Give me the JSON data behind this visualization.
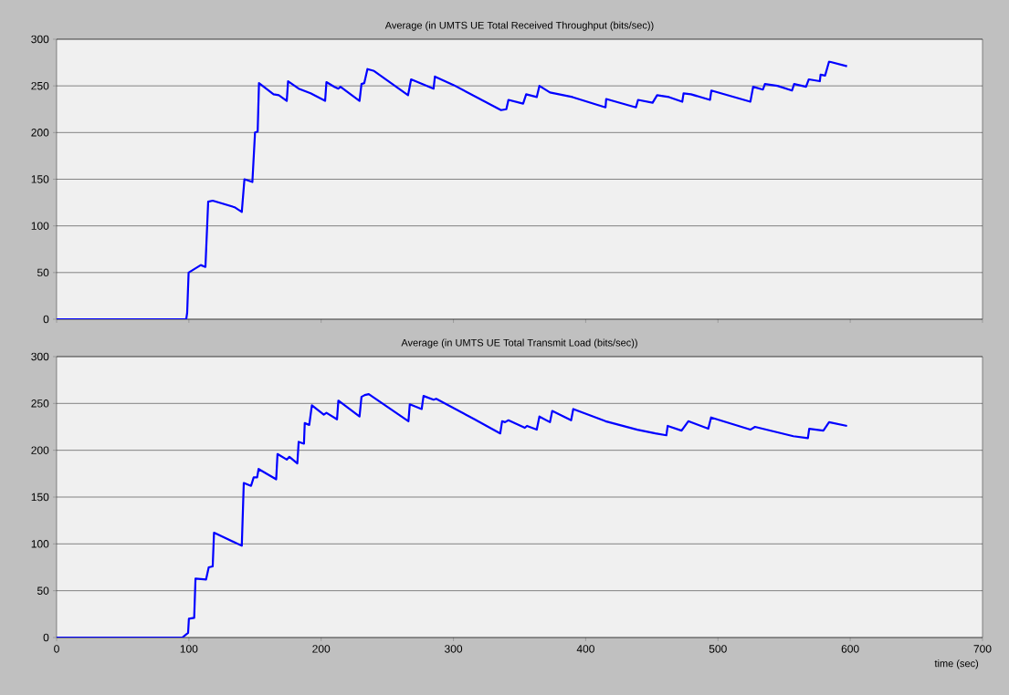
{
  "chart_data": [
    {
      "type": "line",
      "title": "Average (in UMTS UE Total Received Throughput (bits/sec))",
      "xlim": [
        0,
        700
      ],
      "xticks": [
        0,
        100,
        200,
        300,
        400,
        500,
        600,
        700
      ],
      "ylim": [
        0,
        300
      ],
      "yticks": [
        0,
        50,
        100,
        150,
        200,
        250,
        300
      ],
      "grid": "y",
      "tick_labels": "y",
      "series": [
        {
          "color": "#0000ff",
          "x": [
            0,
            98,
            98.7,
            99.8,
            109,
            112.5,
            114.6,
            118,
            134.5,
            140,
            142,
            148,
            150,
            152,
            153,
            164,
            168,
            174,
            175,
            183,
            192,
            203,
            204,
            210,
            213,
            214.6,
            229,
            230.5,
            232.6,
            235,
            240,
            265.7,
            268,
            285,
            286,
            300,
            336,
            340,
            341.6,
            352.7,
            355,
            363,
            365,
            373,
            390,
            415,
            415.5,
            438,
            439.6,
            450.6,
            454,
            463,
            473,
            474,
            479.6,
            494,
            495,
            524.5,
            526.6,
            534,
            535.5,
            545,
            556,
            557.6,
            566.6,
            568.7,
            577,
            577.6,
            581,
            584,
            597.6
          ],
          "values": [
            0,
            0,
            7,
            50,
            58,
            56,
            126,
            127,
            120,
            115,
            150,
            147,
            200,
            201,
            253,
            241,
            240,
            234,
            255,
            247,
            242,
            234,
            254,
            249,
            247,
            249,
            234,
            252,
            253,
            268,
            266,
            240,
            257,
            247,
            260,
            251,
            224,
            225,
            235,
            231,
            241,
            238,
            250,
            243,
            238,
            227,
            236,
            227,
            235,
            232,
            240,
            238,
            233,
            242,
            241,
            235,
            245,
            233,
            249,
            246,
            252,
            250,
            245,
            252,
            249,
            257,
            255,
            262,
            261,
            276,
            271
          ]
        }
      ]
    },
    {
      "type": "line",
      "title": "Average (in UMTS UE Total Transmit Load (bits/sec))",
      "xlabel": "time (sec)",
      "xlim": [
        0,
        700
      ],
      "xticks": [
        0,
        100,
        200,
        300,
        400,
        500,
        600,
        700
      ],
      "ylim": [
        0,
        300
      ],
      "yticks": [
        0,
        50,
        100,
        150,
        200,
        250,
        300
      ],
      "grid": "y",
      "series": [
        {
          "color": "#0000ff",
          "x": [
            0,
            95,
            99.4,
            100,
            104,
            105,
            113,
            115,
            118,
            119,
            140,
            141.5,
            147,
            149,
            151.6,
            152.7,
            166,
            167,
            174,
            176,
            182,
            183,
            187,
            187.6,
            191,
            193,
            202,
            204,
            212,
            213,
            229,
            230.5,
            233,
            236,
            266,
            267,
            276,
            277.4,
            285,
            287,
            316,
            335.4,
            336.8,
            339,
            341.6,
            354,
            355.6,
            363,
            365,
            373,
            374.7,
            389,
            390.6,
            415,
            439,
            452.6,
            461,
            462,
            472.5,
            477.6,
            492.7,
            494.8,
            524.5,
            528,
            557,
            568,
            569,
            579.7,
            584,
            597.6
          ],
          "values": [
            0,
            0,
            5,
            20,
            21,
            63,
            62,
            75,
            76,
            112,
            98,
            165,
            162,
            171,
            171,
            180,
            169,
            196,
            190,
            193,
            186,
            209,
            207,
            229,
            227,
            248,
            238,
            240,
            233,
            253,
            236,
            257,
            259,
            260,
            231,
            249,
            244,
            258,
            254,
            255,
            233,
            218,
            231,
            230,
            232,
            224,
            226,
            222,
            236,
            230,
            242,
            232,
            244,
            231,
            222,
            218,
            216,
            226,
            221,
            231,
            223,
            235,
            222,
            225,
            215,
            213,
            223,
            221,
            230,
            226
          ]
        }
      ]
    }
  ]
}
